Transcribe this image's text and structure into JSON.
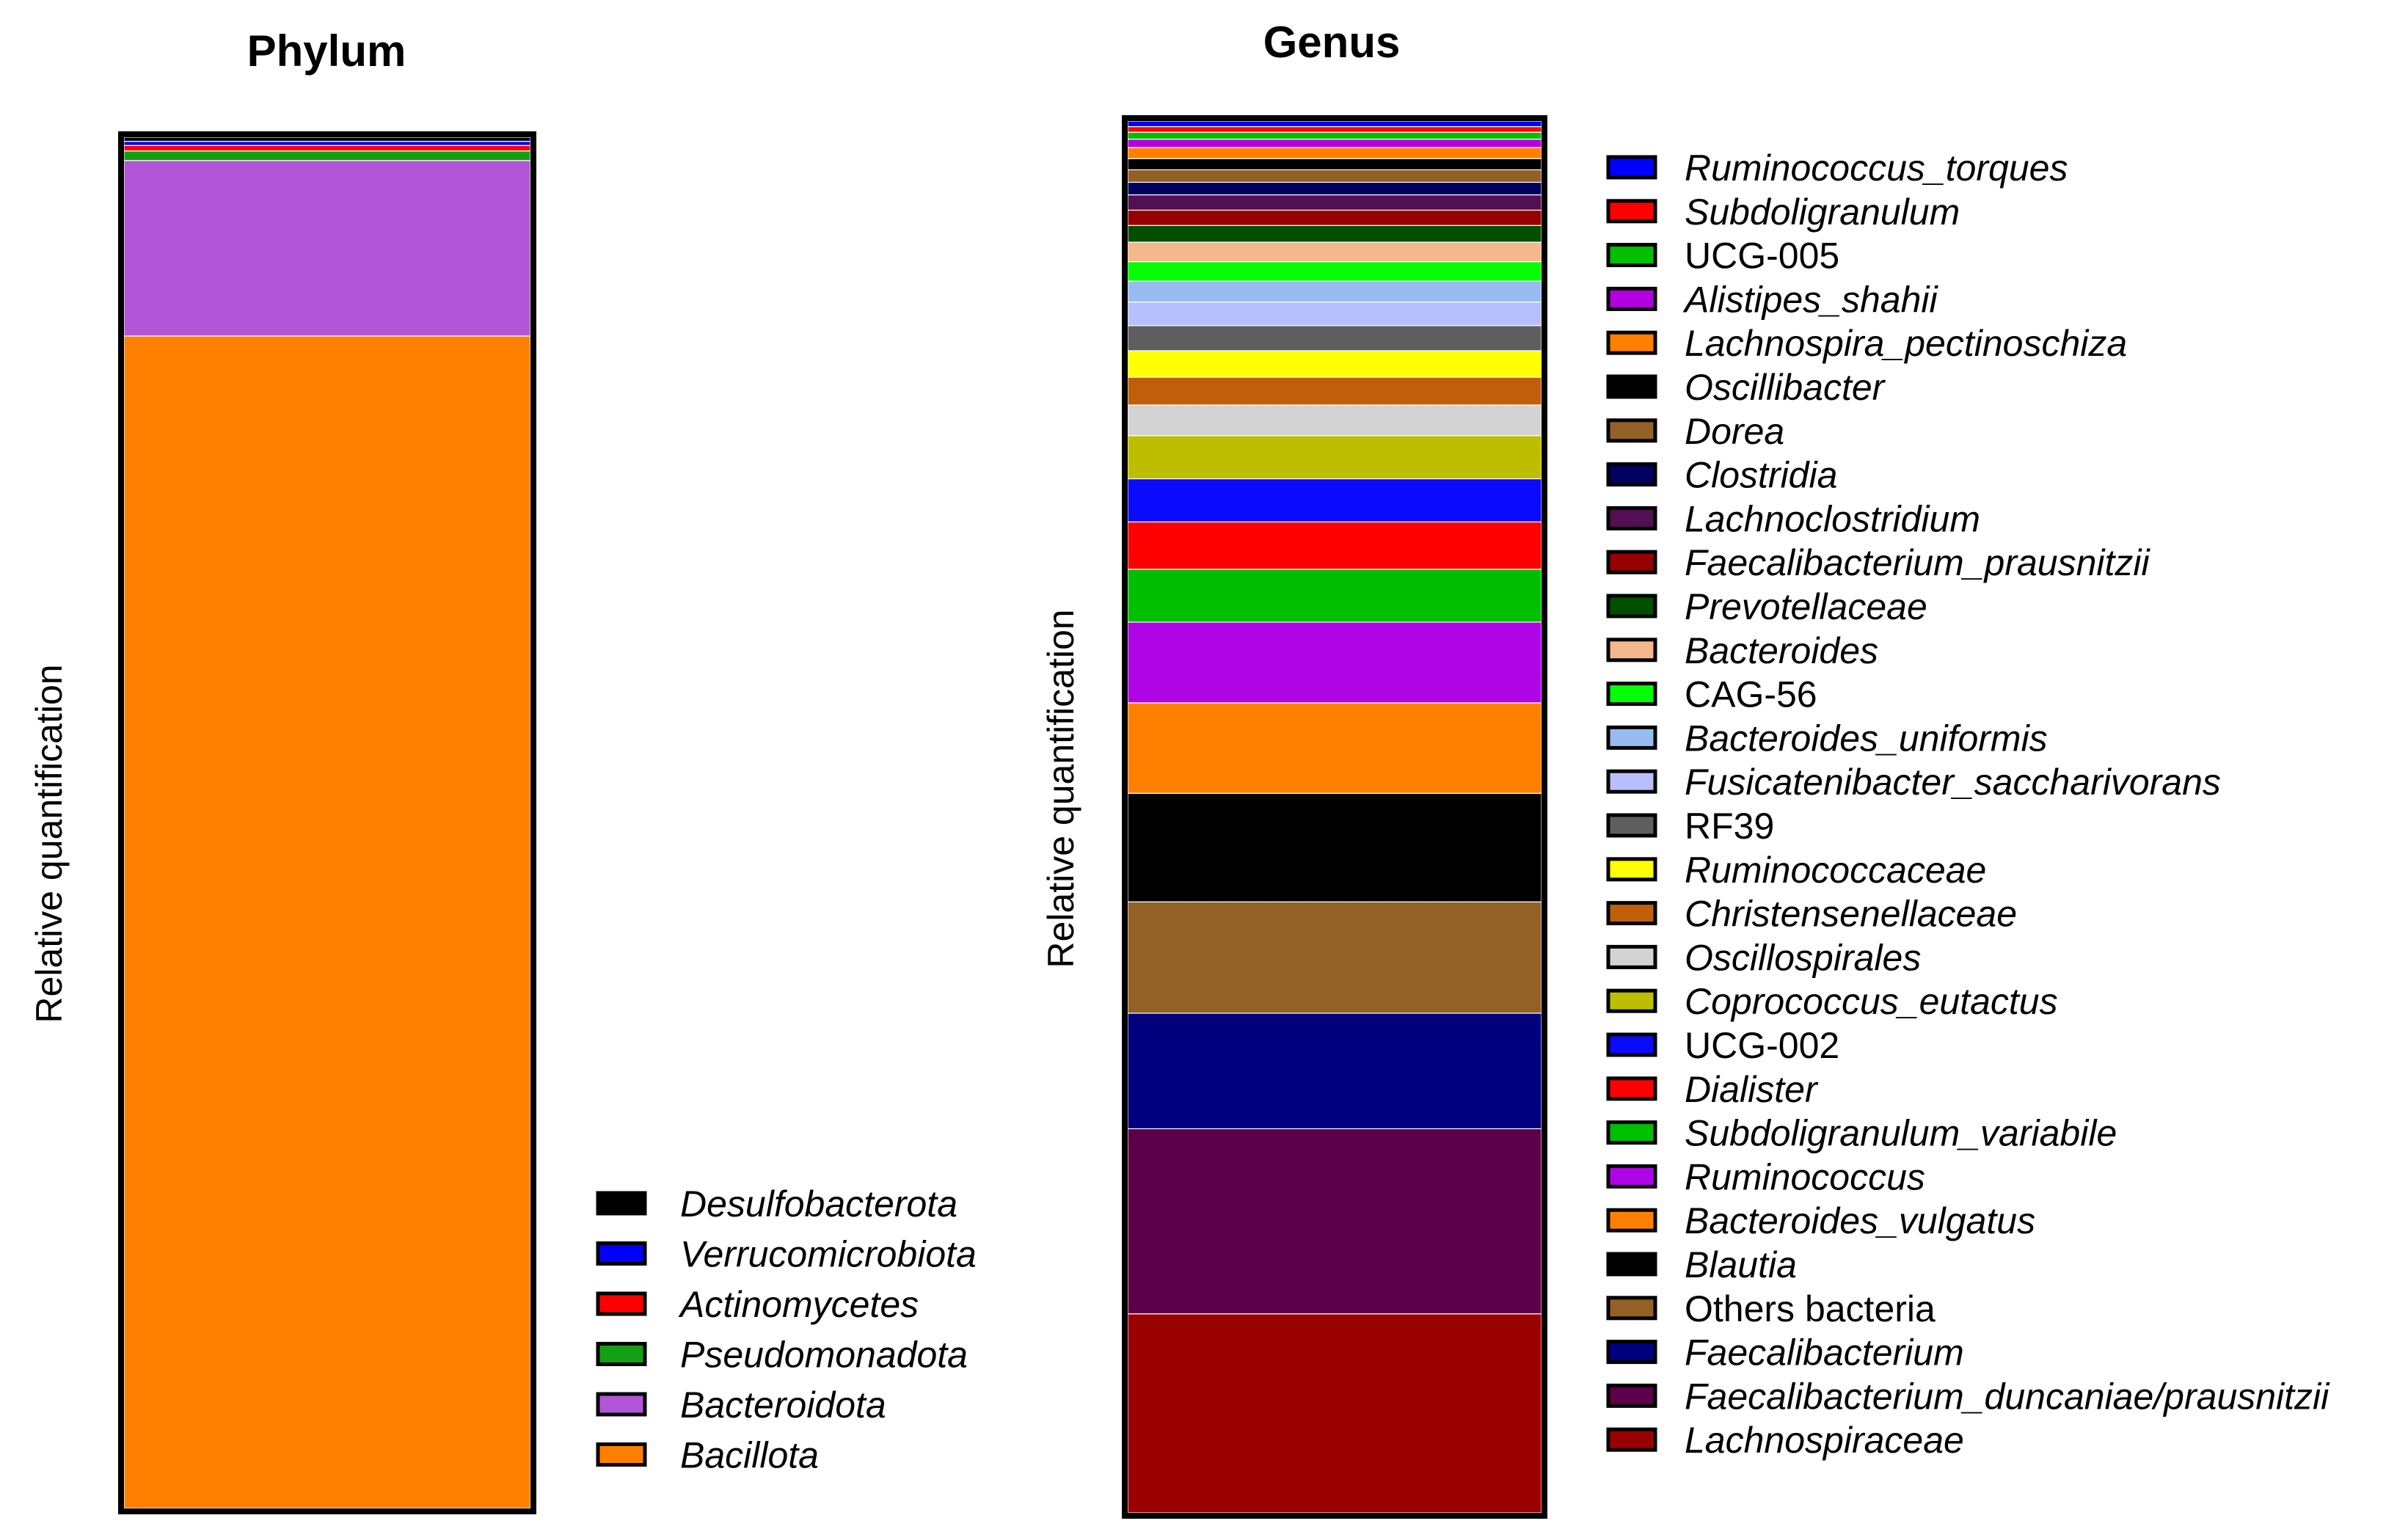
{
  "chart_data": [
    {
      "type": "bar",
      "stacked": true,
      "normalized": true,
      "title": "Phylum",
      "ylabel": "Relative quantification",
      "ylim": [
        0,
        1
      ],
      "categories": [
        "Phylum"
      ],
      "series": [
        {
          "name": "Bacillota",
          "italic": true,
          "color": "#FF8000",
          "values": [
            0.855
          ]
        },
        {
          "name": "Bacteroidota",
          "italic": true,
          "color": "#B256D8",
          "values": [
            0.128
          ]
        },
        {
          "name": "Pseudomonadota",
          "italic": true,
          "color": "#13A013",
          "values": [
            0.007
          ]
        },
        {
          "name": "Actinomycetes",
          "italic": true,
          "color": "#FF0000",
          "values": [
            0.004
          ]
        },
        {
          "name": "Verrucomicrobiota",
          "italic": true,
          "color": "#0000FF",
          "values": [
            0.003
          ]
        },
        {
          "name": "Desulfobacterota",
          "italic": true,
          "color": "#000000",
          "values": [
            0.003
          ]
        }
      ]
    },
    {
      "type": "bar",
      "stacked": true,
      "normalized": true,
      "title": "Genus",
      "ylabel": "Relative quantification",
      "ylim": [
        0,
        1
      ],
      "categories": [
        "Genus"
      ],
      "series": [
        {
          "name": "Lachnospiraceae",
          "italic": true,
          "color": "#9B0000",
          "values": [
            0.143
          ]
        },
        {
          "name": "Faecalibacterium_duncaniae/prausnitzii",
          "italic": true,
          "color": "#5C0049",
          "values": [
            0.133
          ]
        },
        {
          "name": "Faecalibacterium",
          "italic": true,
          "color": "#00007F",
          "values": [
            0.083
          ]
        },
        {
          "name": "Others bacteria",
          "italic": false,
          "color": "#936125",
          "values": [
            0.08
          ]
        },
        {
          "name": "Blautia",
          "italic": true,
          "color": "#000000",
          "values": [
            0.078
          ]
        },
        {
          "name": "Bacteroides_vulgatus",
          "italic": true,
          "color": "#FF8000",
          "values": [
            0.065
          ]
        },
        {
          "name": "Ruminococcus",
          "italic": true,
          "color": "#AF05E6",
          "values": [
            0.058
          ]
        },
        {
          "name": "Subdoligranulum_variabile",
          "italic": true,
          "color": "#00BE00",
          "values": [
            0.038
          ]
        },
        {
          "name": "Dialister",
          "italic": true,
          "color": "#FF0000",
          "values": [
            0.034
          ]
        },
        {
          "name": "UCG-002",
          "italic": false,
          "color": "#0A0AFF",
          "values": [
            0.031
          ]
        },
        {
          "name": "Coprococcus_eutactus",
          "italic": true,
          "color": "#BEBE00",
          "values": [
            0.031
          ]
        },
        {
          "name": "Oscillospirales",
          "italic": true,
          "color": "#D3D3D3",
          "values": [
            0.022
          ]
        },
        {
          "name": "Christensenellaceae",
          "italic": true,
          "color": "#C05E0A",
          "values": [
            0.02
          ]
        },
        {
          "name": "Ruminococcaceae",
          "italic": true,
          "color": "#FFFF00",
          "values": [
            0.019
          ]
        },
        {
          "name": "RF39",
          "italic": false,
          "color": "#5E5E5E",
          "values": [
            0.018
          ]
        },
        {
          "name": "Fusicatenibacter_saccharivorans",
          "italic": true,
          "color": "#B7BFFF",
          "values": [
            0.017
          ]
        },
        {
          "name": "Bacteroides_uniformis",
          "italic": true,
          "color": "#96BCF0",
          "values": [
            0.015
          ]
        },
        {
          "name": "CAG-56",
          "italic": false,
          "color": "#05FF05",
          "values": [
            0.014
          ]
        },
        {
          "name": "Bacteroides",
          "italic": true,
          "color": "#F4B88C",
          "values": [
            0.014
          ]
        },
        {
          "name": "Prevotellaceae",
          "italic": true,
          "color": "#004F00",
          "values": [
            0.012
          ]
        },
        {
          "name": "Faecalibacterium_prausnitzii",
          "italic": true,
          "color": "#960000",
          "values": [
            0.011
          ]
        },
        {
          "name": "Lachnoclostridium",
          "italic": true,
          "color": "#520F52",
          "values": [
            0.011
          ]
        },
        {
          "name": "Clostridia",
          "italic": true,
          "color": "#00005F",
          "values": [
            0.009
          ]
        },
        {
          "name": "Dorea",
          "italic": true,
          "color": "#936125",
          "values": [
            0.009
          ]
        },
        {
          "name": "Oscillibacter",
          "italic": true,
          "color": "#000000",
          "values": [
            0.008
          ]
        },
        {
          "name": "Lachnospira_pectinoschiza",
          "italic": true,
          "color": "#FF8000",
          "values": [
            0.008
          ]
        },
        {
          "name": "Alistipes_shahii",
          "italic": true,
          "color": "#B200E0",
          "values": [
            0.006
          ]
        },
        {
          "name": "UCG-005",
          "italic": false,
          "color": "#00C000",
          "values": [
            0.005
          ]
        },
        {
          "name": "Subdoligranulum",
          "italic": true,
          "color": "#FF0000",
          "values": [
            0.004
          ]
        },
        {
          "name": "Ruminococcus_torques",
          "italic": true,
          "color": "#0000FF",
          "values": [
            0.004
          ]
        }
      ]
    }
  ]
}
